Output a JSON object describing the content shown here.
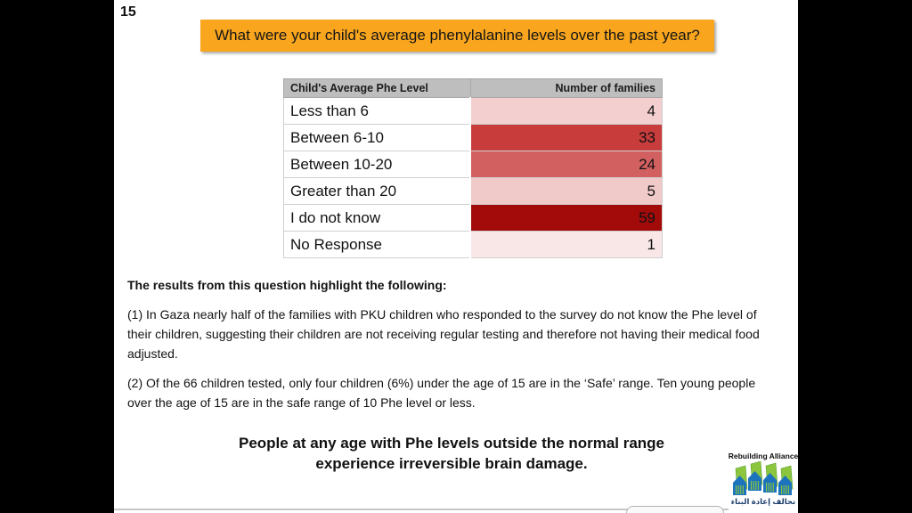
{
  "slide": {
    "number": "15",
    "question": "What were your child's average phenylalanine levels over the past year?"
  },
  "table": {
    "headers": [
      "Child's Average Phe Level",
      "Number of families"
    ],
    "rows": [
      {
        "label": "Less than 6",
        "value": "4",
        "color": "#F3CFCF"
      },
      {
        "label": "Between 6-10",
        "value": "33",
        "color": "#C83C3C"
      },
      {
        "label": "Between 10-20",
        "value": "24",
        "color": "#D26060"
      },
      {
        "label": "Greater than 20",
        "value": "5",
        "color": "#F0C9C9"
      },
      {
        "label": "I do not know",
        "value": "59",
        "color": "#A30B0B"
      },
      {
        "label": "No Response",
        "value": "1",
        "color": "#F9E7E7"
      }
    ]
  },
  "body": {
    "intro": "The results from this question highlight the following:",
    "paragraph_1": "(1) In Gaza nearly half of the families with PKU children who responded to the survey do not know the Phe level of their children, suggesting their children are not receiving regular testing and therefore not having their medical food adjusted.",
    "paragraph_2": "(2) Of the 66 children tested, only four children (6%) under the age of 15 are in the ‘Safe’ range. Ten young people over the age of 15 are in the safe range of 10 Phe level or less.",
    "conclusion": "People at any age with Phe levels outside the normal range experience irreversible brain damage."
  },
  "logo": {
    "name": "Rebuilding Alliance",
    "arabic": "تحالف إعادة البناء"
  },
  "colors": {
    "banner_bg": "#F9A61E",
    "table_header_bg": "#BEBEBE",
    "logo_green": "#8CC63E",
    "logo_green_dark": "#5B9E2D",
    "logo_blue": "#1C75BC"
  },
  "chart_data": {
    "type": "table",
    "title": "What were your child's average phenylalanine levels over the past year?",
    "columns": [
      "Child's Average Phe Level",
      "Number of families"
    ],
    "categories": [
      "Less than 6",
      "Between 6-10",
      "Between 10-20",
      "Greater than 20",
      "I do not know",
      "No Response"
    ],
    "values": [
      4,
      33,
      24,
      5,
      59,
      1
    ]
  }
}
